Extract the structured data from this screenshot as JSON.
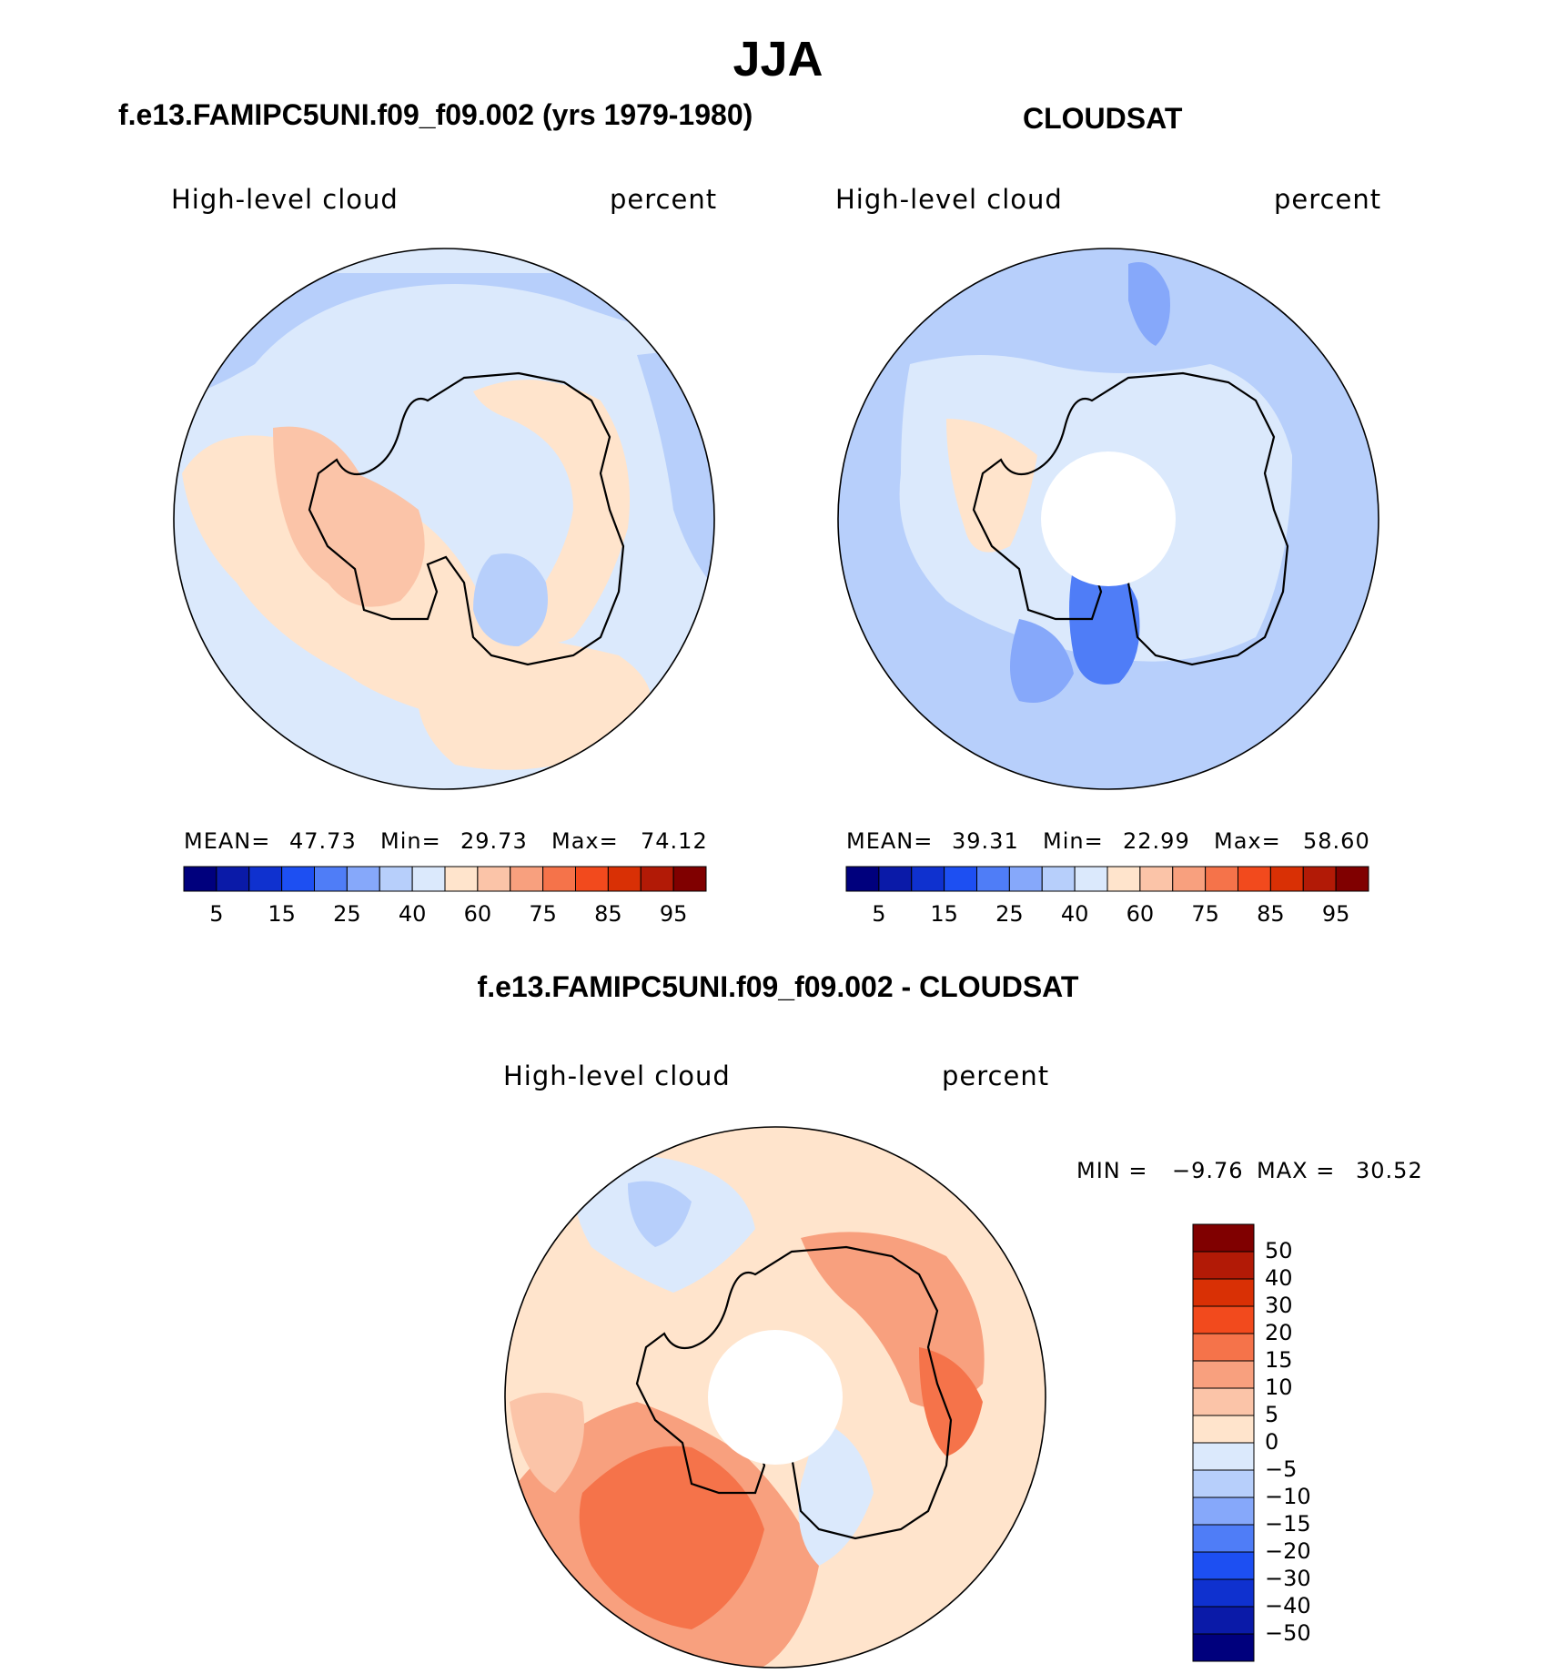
{
  "figure": {
    "season_title": "JJA",
    "panel_left_title": "f.e13.FAMIPC5UNI.f09_f09.002 (yrs 1979-1980)",
    "panel_right_title": "CLOUDSAT",
    "panel_bottom_title": "f.e13.FAMIPC5UNI.f09_f09.002 - CLOUDSAT"
  },
  "chart_data": [
    {
      "type": "heatmap",
      "projection": "south polar stereographic",
      "variable": "High-level cloud",
      "units": "percent",
      "stats": {
        "mean_label": "MEAN=",
        "mean": "47.73",
        "min_label": "Min=",
        "min": "29.73",
        "max_label": "Max=",
        "max": "74.12"
      },
      "colorbar": {
        "orientation": "horizontal",
        "levels": [
          "5",
          "15",
          "25",
          "40",
          "60",
          "75",
          "85",
          "95"
        ],
        "colors": [
          "#00007d",
          "#0a1aa8",
          "#0f31cf",
          "#1d4ff2",
          "#4f7df7",
          "#86a8fa",
          "#b7cffb",
          "#dbe9fc",
          "#ffe4cc",
          "#fbc4a8",
          "#f8a07e",
          "#f5734a",
          "#f24a1d",
          "#d93005",
          "#b21a06",
          "#800000"
        ]
      }
    },
    {
      "type": "heatmap",
      "projection": "south polar stereographic",
      "variable": "High-level cloud",
      "units": "percent",
      "stats": {
        "mean_label": "MEAN=",
        "mean": "39.31",
        "min_label": "Min=",
        "min": "22.99",
        "max_label": "Max=",
        "max": "58.60"
      },
      "colorbar": {
        "orientation": "horizontal",
        "levels": [
          "5",
          "15",
          "25",
          "40",
          "60",
          "75",
          "85",
          "95"
        ],
        "colors": [
          "#00007d",
          "#0a1aa8",
          "#0f31cf",
          "#1d4ff2",
          "#4f7df7",
          "#86a8fa",
          "#b7cffb",
          "#dbe9fc",
          "#ffe4cc",
          "#fbc4a8",
          "#f8a07e",
          "#f5734a",
          "#f24a1d",
          "#d93005",
          "#b21a06",
          "#800000"
        ]
      }
    },
    {
      "type": "heatmap",
      "projection": "south polar stereographic",
      "variable": "High-level cloud",
      "units": "percent",
      "stats": {
        "min_label": "MIN =",
        "min": "−9.76",
        "max_label": "MAX =",
        "max": "30.52"
      },
      "colorbar": {
        "orientation": "vertical",
        "levels": [
          "50",
          "40",
          "30",
          "20",
          "15",
          "10",
          "5",
          "0",
          "−5",
          "−10",
          "−15",
          "−20",
          "−30",
          "−40",
          "−50"
        ],
        "colors": [
          "#800000",
          "#b21a06",
          "#d93005",
          "#f24a1d",
          "#f5734a",
          "#f8a07e",
          "#fbc4a8",
          "#ffe4cc",
          "#dbe9fc",
          "#b7cffb",
          "#86a8fa",
          "#4f7df7",
          "#1d4ff2",
          "#0f31cf",
          "#0a1aa8",
          "#00007d"
        ]
      }
    }
  ]
}
